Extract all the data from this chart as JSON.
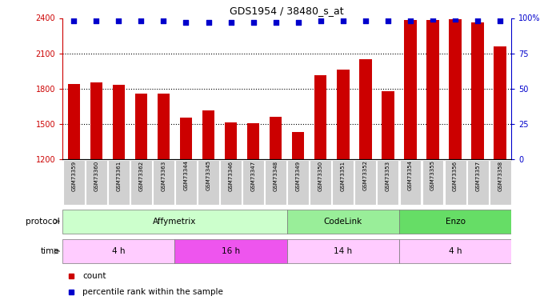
{
  "title": "GDS1954 / 38480_s_at",
  "samples": [
    "GSM73359",
    "GSM73360",
    "GSM73361",
    "GSM73362",
    "GSM73363",
    "GSM73344",
    "GSM73345",
    "GSM73346",
    "GSM73347",
    "GSM73348",
    "GSM73349",
    "GSM73350",
    "GSM73351",
    "GSM73352",
    "GSM73353",
    "GSM73354",
    "GSM73355",
    "GSM73356",
    "GSM73357",
    "GSM73358"
  ],
  "counts": [
    1840,
    1855,
    1830,
    1760,
    1755,
    1555,
    1615,
    1510,
    1505,
    1560,
    1430,
    1910,
    1960,
    2050,
    1775,
    2380,
    2385,
    2390,
    2365,
    2155
  ],
  "percentile_ranks": [
    98,
    98,
    98,
    98,
    98,
    97,
    97,
    97,
    97,
    97,
    97,
    98,
    98,
    98,
    98,
    98,
    99,
    99,
    98,
    98
  ],
  "bar_color": "#cc0000",
  "dot_color": "#0000cc",
  "ylim_left": [
    1200,
    2400
  ],
  "yticks_left": [
    1200,
    1500,
    1800,
    2100,
    2400
  ],
  "ylim_right": [
    0,
    100
  ],
  "yticks_right": [
    0,
    25,
    50,
    75,
    100
  ],
  "ytick_labels_right": [
    "0",
    "25",
    "50",
    "75",
    "100%"
  ],
  "protocol_groups": [
    {
      "label": "Affymetrix",
      "start": 0,
      "end": 9,
      "color": "#ccffcc"
    },
    {
      "label": "CodeLink",
      "start": 10,
      "end": 14,
      "color": "#99ee99"
    },
    {
      "label": "Enzo",
      "start": 15,
      "end": 19,
      "color": "#66dd66"
    }
  ],
  "time_groups": [
    {
      "label": "4 h",
      "start": 0,
      "end": 4,
      "color": "#ffccff"
    },
    {
      "label": "16 h",
      "start": 5,
      "end": 9,
      "color": "#ee55ee"
    },
    {
      "label": "14 h",
      "start": 10,
      "end": 14,
      "color": "#ffccff"
    },
    {
      "label": "4 h",
      "start": 15,
      "end": 19,
      "color": "#ffccff"
    }
  ],
  "legend_items": [
    {
      "label": "count",
      "color": "#cc0000"
    },
    {
      "label": "percentile rank within the sample",
      "color": "#0000cc"
    }
  ],
  "background_color": "#ffffff",
  "grid_color": "#000000",
  "tick_color_left": "#cc0000",
  "tick_color_right": "#0000cc",
  "sample_box_color": "#d0d0d0",
  "arrow_color": "#888888"
}
